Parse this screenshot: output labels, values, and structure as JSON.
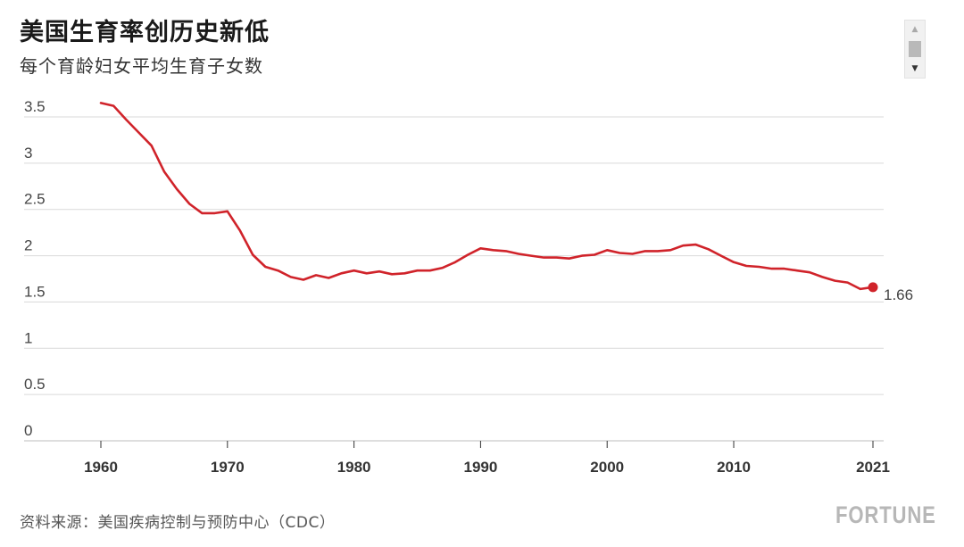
{
  "title": "美国生育率创历史新低",
  "subtitle": "每个育龄妇女平均生育子女数",
  "source": "资料来源：美国疾病控制与预防中心（CDC）",
  "logo": "FORTUNE",
  "chart_data": {
    "type": "line",
    "title": "美国生育率创历史新低",
    "subtitle": "每个育龄妇女平均生育子女数",
    "xlabel": "",
    "ylabel": "",
    "xlim": [
      1955,
      2023
    ],
    "ylim": [
      0,
      3.5
    ],
    "grid": true,
    "x_ticks": [
      1960,
      1970,
      1980,
      1990,
      2000,
      2010,
      2021
    ],
    "x_tick_labels": [
      "1960",
      "1970",
      "1980",
      "1990",
      "2000",
      "2010",
      "2021"
    ],
    "y_ticks": [
      0,
      0.5,
      1,
      1.5,
      2,
      2.5,
      3,
      3.5
    ],
    "y_tick_labels": [
      "0",
      "0.5",
      "1",
      "1.5",
      "2",
      "2.5",
      "3",
      "3.5"
    ],
    "color": "#d0232a",
    "series": [
      {
        "x": [
          1960,
          1961,
          1962,
          1963,
          1964,
          1965,
          1966,
          1967,
          1968,
          1969,
          1970,
          1971,
          1972,
          1973,
          1974,
          1975,
          1976,
          1977,
          1978,
          1979,
          1980,
          1981,
          1982,
          1983,
          1984,
          1985,
          1986,
          1987,
          1988,
          1989,
          1990,
          1991,
          1992,
          1993,
          1994,
          1995,
          1996,
          1997,
          1998,
          1999,
          2000,
          2001,
          2002,
          2003,
          2004,
          2005,
          2006,
          2007,
          2008,
          2009,
          2010,
          2011,
          2012,
          2013,
          2014,
          2015,
          2016,
          2017,
          2018,
          2019,
          2020,
          2021
        ],
        "y": [
          3.65,
          3.62,
          3.47,
          3.33,
          3.19,
          2.91,
          2.72,
          2.56,
          2.46,
          2.46,
          2.48,
          2.27,
          2.01,
          1.88,
          1.84,
          1.77,
          1.74,
          1.79,
          1.76,
          1.81,
          1.84,
          1.81,
          1.83,
          1.8,
          1.81,
          1.84,
          1.84,
          1.87,
          1.93,
          2.01,
          2.08,
          2.06,
          2.05,
          2.02,
          2.0,
          1.98,
          1.98,
          1.97,
          2.0,
          2.01,
          2.06,
          2.03,
          2.02,
          2.05,
          2.05,
          2.06,
          2.11,
          2.12,
          2.07,
          2.0,
          1.93,
          1.89,
          1.88,
          1.86,
          1.86,
          1.84,
          1.82,
          1.77,
          1.73,
          1.71,
          1.64,
          1.66
        ]
      }
    ],
    "annotations": [
      {
        "x": 2021,
        "y": 1.66,
        "text": "1.66"
      }
    ]
  }
}
